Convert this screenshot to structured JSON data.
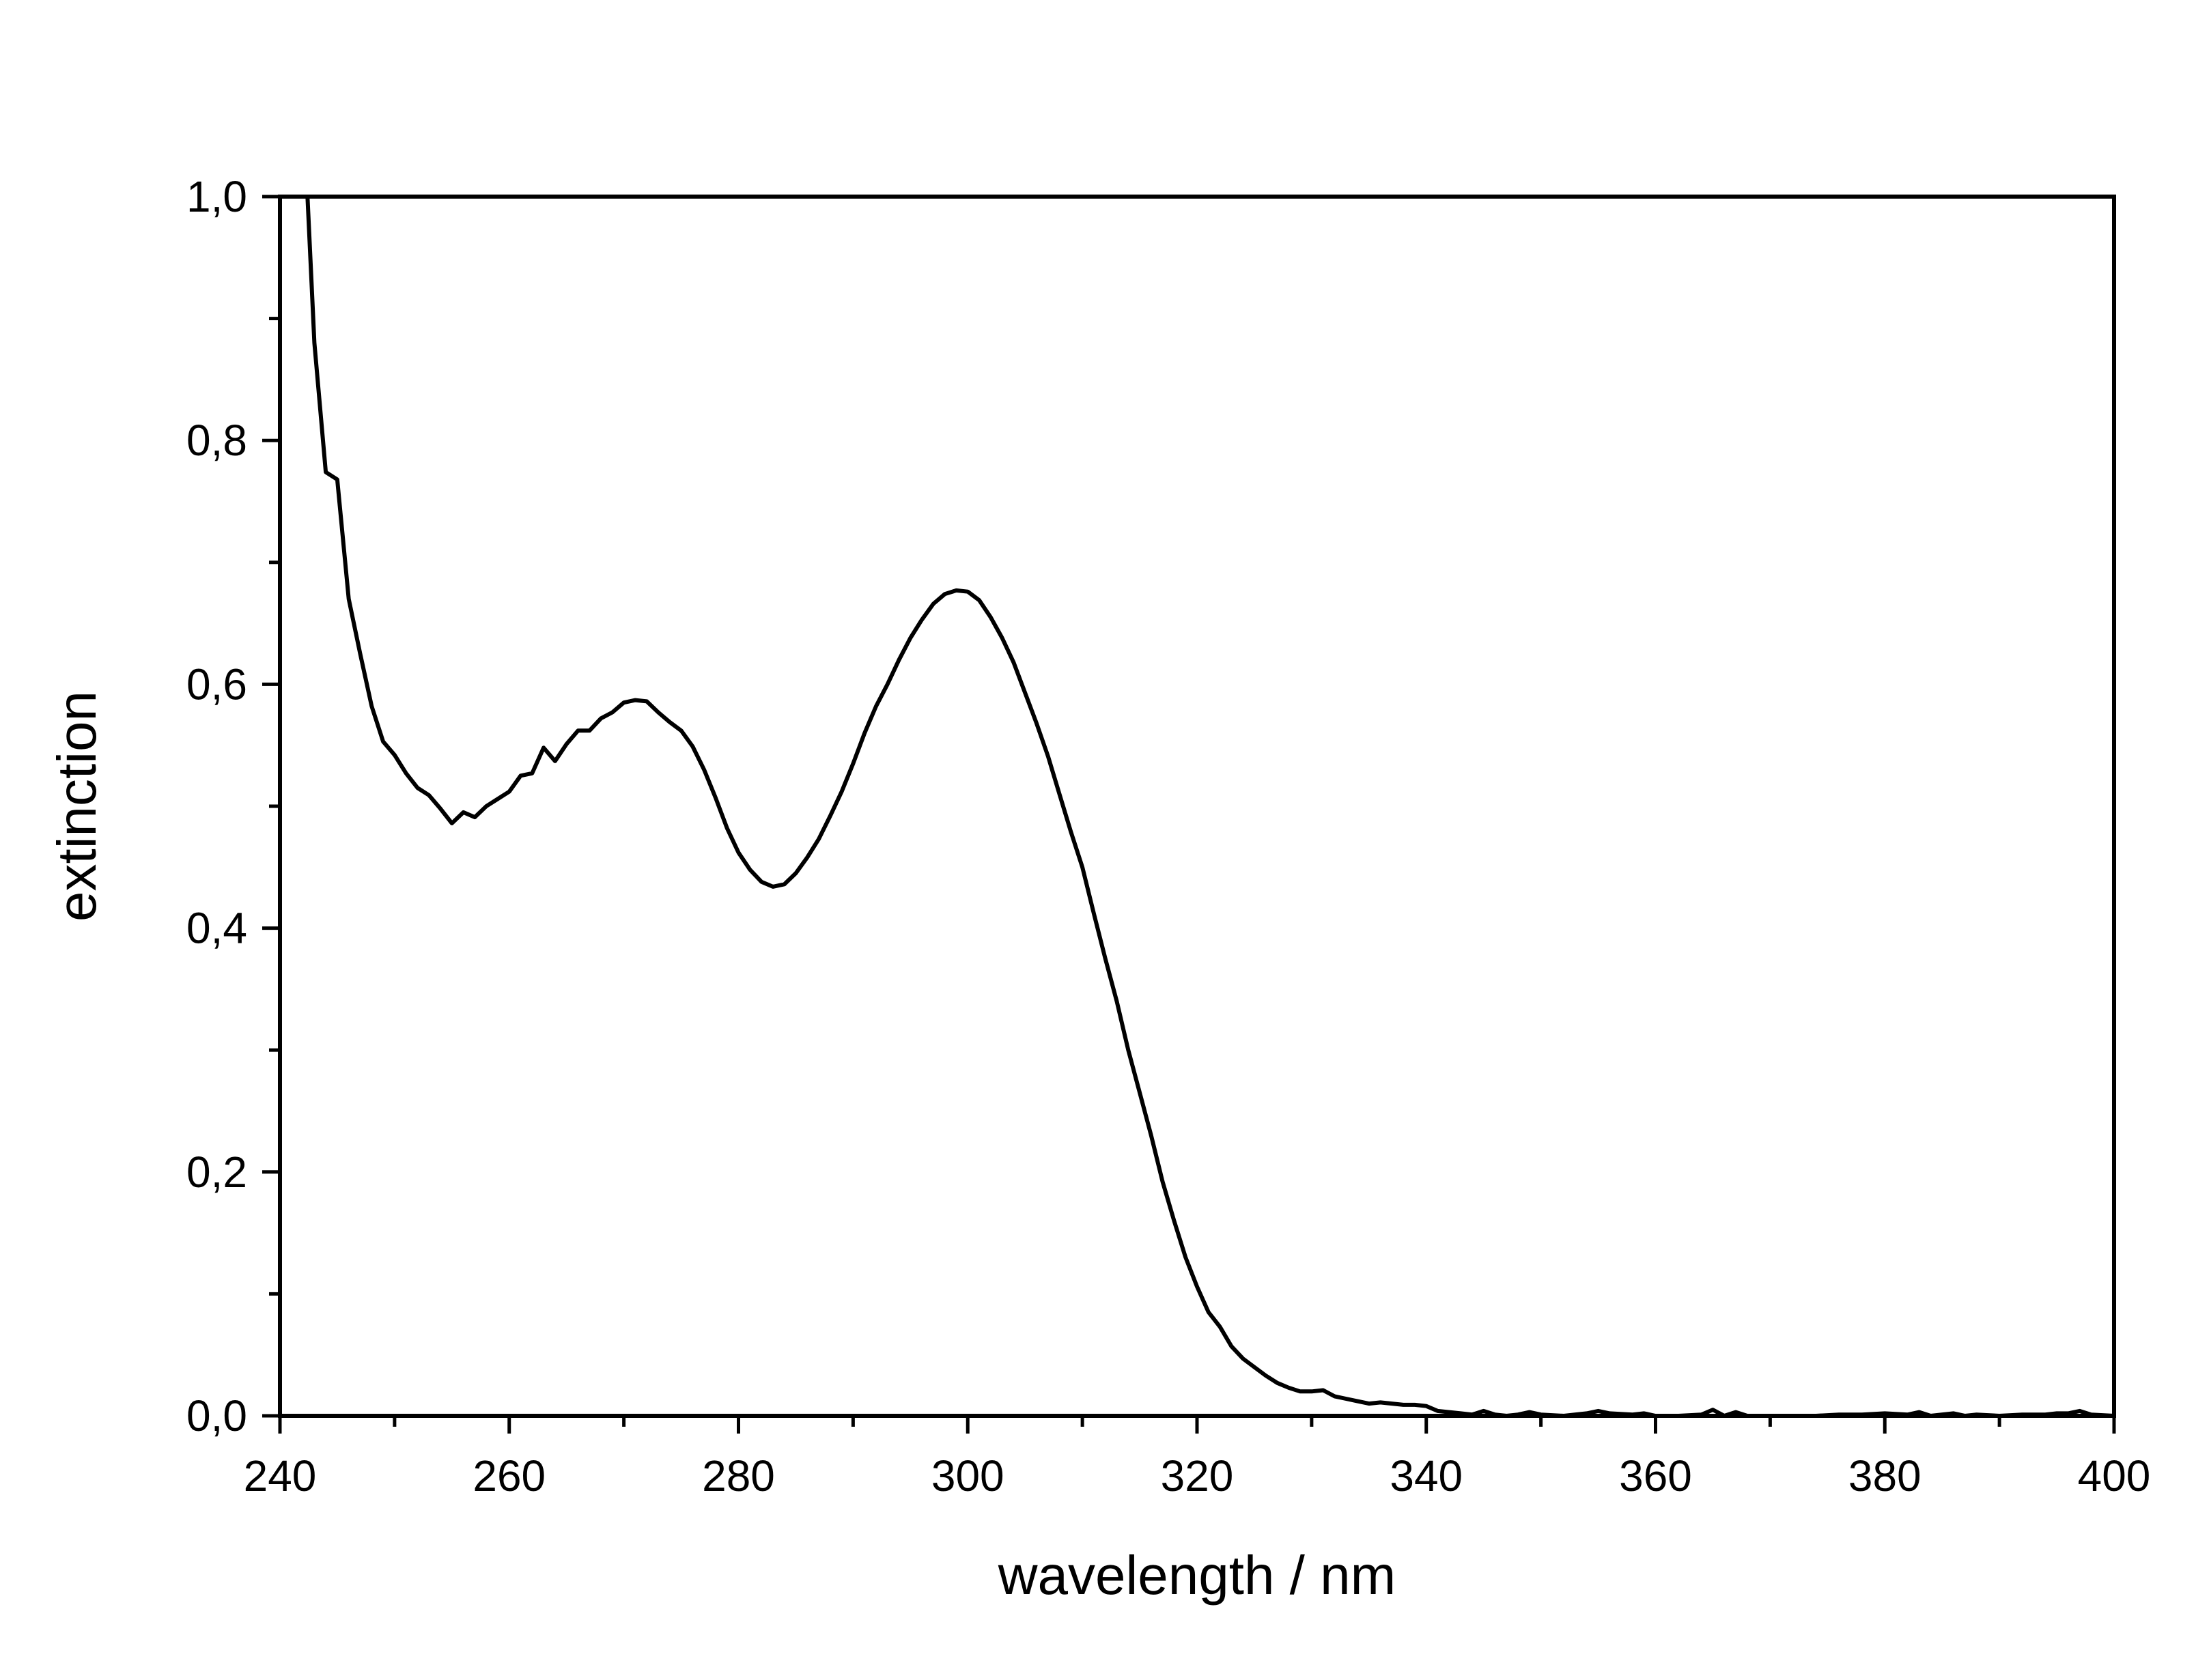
{
  "chart_data": {
    "type": "line",
    "title": "",
    "xlabel": "wavelength / nm",
    "ylabel": "extinction",
    "xlim": [
      240,
      400
    ],
    "ylim": [
      0.0,
      1.0
    ],
    "x_ticks": [
      240,
      260,
      280,
      300,
      320,
      340,
      360,
      380,
      400
    ],
    "x_tick_labels": [
      "240",
      "260",
      "280",
      "300",
      "320",
      "340",
      "360",
      "380",
      "400"
    ],
    "y_ticks": [
      0.0,
      0.2,
      0.4,
      0.6,
      0.8,
      1.0
    ],
    "y_tick_labels": [
      "0,0",
      "0,2",
      "0,4",
      "0,6",
      "0,8",
      "1,0"
    ],
    "grid": false,
    "legend": "none",
    "line_color": "#000000",
    "series": [
      {
        "x": [
          240,
          242.4,
          243,
          244,
          245,
          246,
          247,
          248,
          249,
          250,
          251,
          252,
          253,
          254,
          255,
          256,
          257,
          258,
          259,
          260,
          261,
          262,
          263,
          264,
          265,
          266,
          267,
          268,
          269,
          270,
          271,
          272,
          273,
          274,
          275,
          276,
          277,
          278,
          279,
          280,
          281,
          282,
          283,
          284,
          285,
          286,
          287,
          288,
          289,
          290,
          291,
          292,
          293,
          294,
          295,
          296,
          297,
          298,
          299,
          300,
          301,
          302,
          303,
          304,
          305,
          306,
          307,
          308,
          309,
          310,
          311,
          312,
          313,
          314,
          315,
          316,
          317,
          318,
          319,
          320,
          321,
          322,
          323,
          324,
          325,
          326,
          327,
          328,
          329,
          330,
          331,
          332,
          333,
          334,
          335,
          336,
          337,
          338,
          339,
          340,
          341,
          342,
          343,
          344,
          345,
          346,
          347,
          348,
          349,
          350,
          352,
          354,
          355,
          356,
          358,
          359,
          360,
          362,
          364,
          365,
          366,
          367,
          368,
          370,
          372,
          374,
          376,
          378,
          380,
          382,
          383,
          384,
          386,
          387,
          388,
          390,
          392,
          394,
          395,
          396,
          397,
          398,
          400
        ],
        "y": [
          1.0,
          1.0,
          0.88,
          0.774,
          0.768,
          0.67,
          0.625,
          0.582,
          0.553,
          0.542,
          0.527,
          0.515,
          0.509,
          0.498,
          0.486,
          0.495,
          0.491,
          0.5,
          0.506,
          0.512,
          0.525,
          0.527,
          0.548,
          0.537,
          0.551,
          0.562,
          0.562,
          0.572,
          0.577,
          0.585,
          0.587,
          0.586,
          0.577,
          0.569,
          0.562,
          0.549,
          0.53,
          0.507,
          0.482,
          0.462,
          0.448,
          0.438,
          0.434,
          0.436,
          0.445,
          0.458,
          0.473,
          0.492,
          0.512,
          0.535,
          0.56,
          0.582,
          0.6,
          0.62,
          0.638,
          0.653,
          0.666,
          0.674,
          0.677,
          0.676,
          0.669,
          0.655,
          0.638,
          0.618,
          0.593,
          0.568,
          0.541,
          0.51,
          0.479,
          0.45,
          0.412,
          0.375,
          0.34,
          0.3,
          0.265,
          0.23,
          0.192,
          0.16,
          0.13,
          0.106,
          0.085,
          0.073,
          0.057,
          0.047,
          0.04,
          0.033,
          0.027,
          0.023,
          0.02,
          0.02,
          0.021,
          0.016,
          0.014,
          0.012,
          0.01,
          0.011,
          0.01,
          0.009,
          0.009,
          0.008,
          0.004,
          0.003,
          0.002,
          0.001,
          0.004,
          0.001,
          0.0,
          0.001,
          0.003,
          0.001,
          0.0,
          0.002,
          0.004,
          0.002,
          0.001,
          0.002,
          0.0,
          0.0,
          0.001,
          0.005,
          0.0,
          0.003,
          0.0,
          0.0,
          0.0,
          0.0,
          0.001,
          0.001,
          0.002,
          0.001,
          0.003,
          0.0,
          0.002,
          0.0,
          0.001,
          0.0,
          0.001,
          0.001,
          0.002,
          0.002,
          0.004,
          0.001,
          0.0
        ]
      }
    ]
  }
}
